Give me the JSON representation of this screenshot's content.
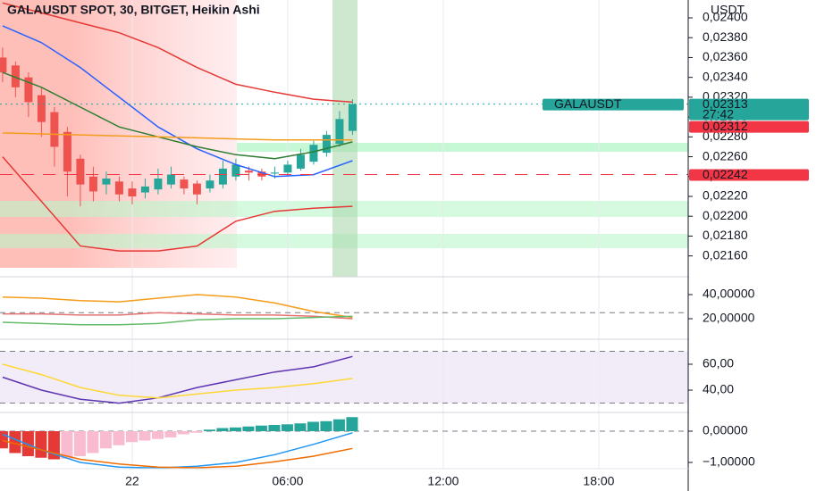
{
  "chart_data": [
    {
      "type": "candlestick",
      "title": "GALAUSDT SPOT, 30, BITGET, Heikin Ashi",
      "unit": "USDT",
      "symbol": "GALAUSDT",
      "countdown": "27:42",
      "up_color": "#26a69a",
      "down_color": "#ef5350",
      "x": [
        -5,
        -4.5,
        -4,
        -3.5,
        -3,
        -2.5,
        -2,
        -1.5,
        -1,
        -0.5,
        0,
        0.5,
        1,
        1.5,
        2,
        2.5,
        3,
        3.5,
        4,
        4.5,
        5,
        5.5,
        6,
        6.5,
        7,
        7.5,
        8,
        8.5
      ],
      "open": [
        0.0236,
        0.02352,
        0.0234,
        0.02322,
        0.02305,
        0.02285,
        0.02258,
        0.0224,
        0.02232,
        0.02235,
        0.02228,
        0.02224,
        0.02227,
        0.02232,
        0.02237,
        0.02233,
        0.02228,
        0.02232,
        0.0224,
        0.02246,
        0.02245,
        0.02243,
        0.02244,
        0.02248,
        0.02255,
        0.02264,
        0.02273,
        0.02286
      ],
      "high": [
        0.0237,
        0.02356,
        0.02345,
        0.0233,
        0.0231,
        0.0229,
        0.02262,
        0.0225,
        0.02245,
        0.0224,
        0.02235,
        0.02238,
        0.02248,
        0.0225,
        0.0224,
        0.02236,
        0.02242,
        0.02256,
        0.02258,
        0.0225,
        0.02248,
        0.0225,
        0.02256,
        0.02268,
        0.02276,
        0.02286,
        0.02306,
        0.02318
      ],
      "low": [
        0.02335,
        0.0232,
        0.023,
        0.0228,
        0.0225,
        0.0222,
        0.0221,
        0.02215,
        0.02222,
        0.02215,
        0.02212,
        0.02218,
        0.02222,
        0.02228,
        0.02222,
        0.02212,
        0.02224,
        0.02228,
        0.02236,
        0.02236,
        0.02236,
        0.02238,
        0.0224,
        0.02246,
        0.02252,
        0.0226,
        0.0227,
        0.02282
      ],
      "close": [
        0.02345,
        0.0233,
        0.02315,
        0.02295,
        0.0227,
        0.02245,
        0.02232,
        0.02225,
        0.02238,
        0.02222,
        0.0222,
        0.0223,
        0.02238,
        0.02242,
        0.02228,
        0.02222,
        0.02236,
        0.02248,
        0.02252,
        0.02244,
        0.0224,
        0.02244,
        0.02252,
        0.02262,
        0.02272,
        0.02282,
        0.02298,
        0.02313
      ],
      "series": [
        {
          "color": "#e53935",
          "x": [
            -5,
            -3.5,
            -2,
            -0.5,
            1,
            2.5,
            4,
            5.5,
            7,
            8.5
          ],
          "values": [
            0.02415,
            0.02405,
            0.02395,
            0.02385,
            0.0237,
            0.0235,
            0.02333,
            0.02325,
            0.02318,
            0.02315
          ]
        },
        {
          "color": "#e53935",
          "x": [
            -5,
            -3.5,
            -2,
            -0.5,
            1,
            2.5,
            4,
            5.5,
            7,
            8.5
          ],
          "values": [
            0.0226,
            0.02215,
            0.0217,
            0.02165,
            0.02165,
            0.0217,
            0.02195,
            0.02205,
            0.02208,
            0.0221
          ]
        },
        {
          "color": "#2962ff",
          "x": [
            -5,
            -3.5,
            -2,
            -0.5,
            1,
            2.5,
            4,
            5.5,
            7,
            8.5
          ],
          "values": [
            0.02392,
            0.02375,
            0.0235,
            0.0232,
            0.0229,
            0.02268,
            0.02252,
            0.0224,
            0.02242,
            0.02256
          ]
        },
        {
          "color": "#2e7d32",
          "x": [
            -5,
            -3.5,
            -2,
            -0.5,
            1,
            2.5,
            4,
            5.5,
            7,
            8.5
          ],
          "values": [
            0.02345,
            0.0233,
            0.0231,
            0.0229,
            0.0228,
            0.0227,
            0.02262,
            0.02258,
            0.02265,
            0.02275
          ]
        },
        {
          "color": "#f59c1a",
          "x": [
            -5,
            -3.5,
            -2,
            -0.5,
            1,
            2.5,
            4,
            5.5,
            7,
            8.5
          ],
          "values": [
            0.02284,
            0.02283,
            0.02282,
            0.02281,
            0.0228,
            0.02279,
            0.02278,
            0.02277,
            0.02277,
            0.02277
          ]
        }
      ],
      "price_lines": [
        {
          "value": 0.02313,
          "label": "0,02313",
          "color": "#26a69a",
          "style": "dotted"
        },
        {
          "value": 0.02312,
          "label": "0,02312",
          "color": "#f23645"
        },
        {
          "value": 0.02242,
          "label": "0,02242",
          "color": "#f23645",
          "style": "dashed"
        }
      ],
      "ylim": [
        0.02139,
        0.02418
      ],
      "yticks": [
        {
          "value": 0.0216,
          "label": "0,02160"
        },
        {
          "value": 0.0218,
          "label": "0,02180"
        },
        {
          "value": 0.022,
          "label": "0,02200"
        },
        {
          "value": 0.0222,
          "label": "0,02220"
        },
        {
          "value": 0.0224,
          "label": "0,02240"
        },
        {
          "value": 0.0226,
          "label": "0,02260"
        },
        {
          "value": 0.0228,
          "label": "0,02280"
        },
        {
          "value": 0.023,
          "label": "0,02300"
        },
        {
          "value": 0.0232,
          "label": "0,02320"
        },
        {
          "value": 0.0234,
          "label": "0,02340"
        },
        {
          "value": 0.0236,
          "label": "0,02360"
        },
        {
          "value": 0.0238,
          "label": "0,02380"
        },
        {
          "value": 0.024,
          "label": "0,02400"
        }
      ]
    },
    {
      "type": "line",
      "series": [
        {
          "color": "#f59c1a",
          "x": [
            -5,
            -3.5,
            -2,
            -0.5,
            1,
            2.5,
            4,
            5.5,
            7,
            8.5
          ],
          "values": [
            38,
            37,
            35,
            34,
            37,
            40,
            38,
            33,
            26,
            21
          ]
        },
        {
          "color": "#e57373",
          "x": [
            -5,
            -3.5,
            -2,
            -0.5,
            1,
            2.5,
            4,
            5.5,
            7,
            8.5
          ],
          "values": [
            24,
            24,
            23,
            23,
            25,
            24,
            23,
            23,
            22,
            20
          ]
        },
        {
          "color": "#66bb6a",
          "x": [
            -5,
            -3.5,
            -2,
            -0.5,
            1,
            2.5,
            4,
            5.5,
            7,
            8.5
          ],
          "values": [
            17,
            16,
            15,
            15,
            16,
            19,
            20,
            20,
            21,
            22
          ]
        }
      ],
      "levels": [
        25
      ],
      "ylim": [
        2.96,
        54.8
      ],
      "yticks": [
        {
          "value": 40,
          "label": "40,00000"
        },
        {
          "value": 20,
          "label": "20,00000"
        }
      ]
    },
    {
      "type": "line",
      "band": [
        30,
        70
      ],
      "band_color": "#ede7f6",
      "series": [
        {
          "color": "#5e35b1",
          "x": [
            -5,
            -3.5,
            -2,
            -0.5,
            1,
            2.5,
            4,
            5.5,
            7,
            8.5
          ],
          "values": [
            50,
            40,
            33,
            30,
            34,
            42,
            48,
            54,
            58,
            66
          ]
        },
        {
          "color": "#fdd835",
          "x": [
            -5,
            -3.5,
            -2,
            -0.5,
            1,
            2.5,
            4,
            5.5,
            7,
            8.5
          ],
          "values": [
            60,
            52,
            42,
            36,
            34,
            37,
            40,
            42,
            45,
            49
          ]
        }
      ],
      "levels": [
        70,
        30
      ],
      "ylim": [
        22.8,
        79.3
      ],
      "yticks": [
        {
          "value": 60,
          "label": "60,00"
        },
        {
          "value": 40,
          "label": "40,00"
        }
      ]
    },
    {
      "type": "macd",
      "colors": {
        "neg_down": "#e53935",
        "neg_up": "#f8bbd0",
        "pos_up": "#26a69a"
      },
      "x": [
        -5,
        -4.5,
        -4,
        -3.5,
        -3,
        -2.5,
        -2,
        -1.5,
        -1,
        -0.5,
        0,
        0.5,
        1,
        1.5,
        2,
        2.5,
        3,
        3.5,
        4,
        4.5,
        5,
        5.5,
        6,
        6.5,
        7,
        7.5,
        8,
        8.5
      ],
      "values": [
        -0.55,
        -0.7,
        -0.8,
        -0.85,
        -0.9,
        -0.88,
        -0.8,
        -0.7,
        -0.55,
        -0.45,
        -0.35,
        -0.3,
        -0.25,
        -0.2,
        -0.1,
        -0.05,
        0.05,
        0.1,
        0.12,
        0.15,
        0.18,
        0.2,
        0.22,
        0.25,
        0.3,
        0.32,
        0.38,
        0.45
      ],
      "series": [
        {
          "color": "#2196f3",
          "x": [
            -5,
            -3.5,
            -2,
            -0.5,
            1,
            2.5,
            4,
            5.5,
            7,
            8.5
          ],
          "values": [
            -0.1,
            -0.6,
            -1.0,
            -1.15,
            -1.18,
            -1.12,
            -1.0,
            -0.75,
            -0.42,
            -0.05
          ]
        },
        {
          "color": "#ef6c00",
          "x": [
            -5,
            -3.5,
            -2,
            -0.5,
            1,
            2.5,
            4,
            5.5,
            7,
            8.5
          ],
          "values": [
            -0.3,
            -0.6,
            -0.9,
            -1.05,
            -1.15,
            -1.17,
            -1.12,
            -0.98,
            -0.8,
            -0.55
          ]
        }
      ],
      "levels": [
        0
      ],
      "ylim": [
        -1.2,
        0.6
      ],
      "yticks": [
        {
          "value": 0,
          "label": "0,00000"
        },
        {
          "value": -1,
          "label": "−1,00000"
        }
      ],
      "xlim": [
        -5.1,
        21.45
      ],
      "xticks": [
        {
          "value": 0,
          "label": "22"
        },
        {
          "value": 6,
          "label": "06:00"
        },
        {
          "value": 12,
          "label": "12:00"
        },
        {
          "value": 18,
          "label": "18:00"
        }
      ]
    }
  ]
}
